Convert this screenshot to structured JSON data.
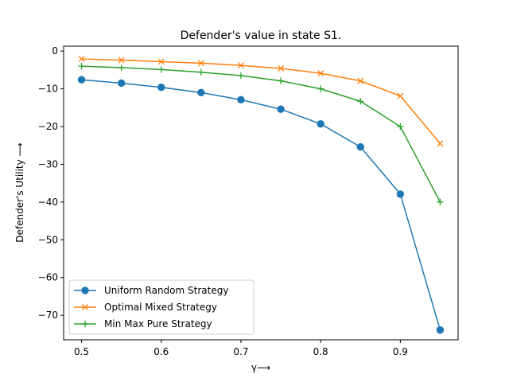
{
  "chart_data": {
    "type": "line",
    "title": "Defender's value in state S1.",
    "xlabel": "γ⟶",
    "ylabel": "Defender's Utility  ⟶",
    "x": [
      0.5,
      0.55,
      0.6,
      0.65,
      0.7,
      0.75,
      0.8,
      0.85,
      0.9,
      0.95
    ],
    "xlim": [
      0.4775,
      0.9725
    ],
    "ylim": [
      -76.5,
      1.3
    ],
    "xticks": [
      0.5,
      0.6,
      0.7,
      0.8,
      0.9
    ],
    "xtick_labels": [
      "0.5",
      "0.6",
      "0.7",
      "0.8",
      "0.9"
    ],
    "yticks": [
      0,
      -10,
      -20,
      -30,
      -40,
      -50,
      -60,
      -70
    ],
    "ytick_labels": [
      "0",
      "−10",
      "−20",
      "−30",
      "−40",
      "−50",
      "−60",
      "−70"
    ],
    "grid": false,
    "legend_position": "lower-left",
    "series": [
      {
        "name": "Uniform Random Strategy",
        "color": "#1f77b4",
        "marker": "circle",
        "values": [
          -7.6,
          -8.5,
          -9.6,
          -11.0,
          -12.9,
          -15.4,
          -19.3,
          -25.4,
          -37.9,
          -73.9
        ]
      },
      {
        "name": "Optimal Mixed Strategy",
        "color": "#ff7f0e",
        "marker": "x",
        "values": [
          -2.1,
          -2.4,
          -2.8,
          -3.2,
          -3.8,
          -4.6,
          -5.9,
          -7.9,
          -11.9,
          -24.5
        ]
      },
      {
        "name": "Min Max Pure Strategy",
        "color": "#2ca02c",
        "marker": "plus",
        "values": [
          -4.0,
          -4.4,
          -4.9,
          -5.6,
          -6.5,
          -7.9,
          -10.0,
          -13.3,
          -20.0,
          -40.0
        ]
      }
    ]
  }
}
